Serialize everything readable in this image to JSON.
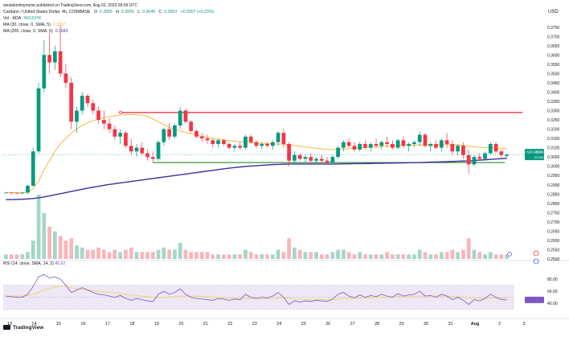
{
  "header": {
    "published": "westabiolmyname published on TradingView.com, Aug 02, 2023 09:59 UTC",
    "currency": "USD"
  },
  "legend": {
    "symbol": "Cardano / United States Dollar, 4h, COINBASE",
    "open_label": "O",
    "open": "0.3056",
    "high_label": "H",
    "high": "0.3066",
    "low_label": "L",
    "low": "0.3046",
    "close_label": "C",
    "close": "0.3063",
    "change": "+0.0007 (+0.23%)",
    "vol_label": "Vol · ADA",
    "vol": "403.537K",
    "ma30_label": "MA (30, close, 0, SMA, 5)",
    "ma30": "0.3097",
    "ma200_label": "MA (200, close, 0, SMA, 5)",
    "ma200": "0.3043"
  },
  "rsi": {
    "label": "RSI (14, close, SMA, 14, 2)",
    "value": "45.62",
    "ticks": [
      "80.00",
      "60.00",
      "40.00"
    ]
  },
  "price_badges": {
    "ada_usd": "ADAUSD",
    "price": "0.3063",
    "countdown": "02:00:59"
  },
  "branding": {
    "logo_text": "TradingView"
  },
  "colors": {
    "up": "#089981",
    "down": "#f23645",
    "ma30": "#f5b93a",
    "ma200": "#3d2fa0",
    "resistance": "#f23645",
    "support": "#3a9a3e",
    "rsi_line": "#7e57c2",
    "rsi_ma": "#f5d56a",
    "rsi_band": "#ede7f6"
  },
  "chart_data": {
    "type": "candlestick",
    "x_ticks": [
      "13",
      "14",
      "15",
      "16",
      "17",
      "18",
      "19",
      "20",
      "21",
      "22",
      "23",
      "24",
      "25",
      "26",
      "27",
      "28",
      "29",
      "30",
      "31",
      "Aug",
      "2",
      "3"
    ],
    "y_ticks": [
      "0.3750",
      "0.3700",
      "0.3650",
      "0.3600",
      "0.3550",
      "0.3500",
      "0.3450",
      "0.3400",
      "0.3350",
      "0.3300",
      "0.3250",
      "0.3200",
      "0.3150",
      "0.3100",
      "0.3050",
      "0.3000",
      "0.2950",
      "0.2900",
      "0.2850",
      "0.2800",
      "0.2750",
      "0.2700",
      "0.2650",
      "0.2600",
      "0.2550",
      "0.2500"
    ],
    "ylim": [
      0.25,
      0.3775
    ],
    "candles": [
      [
        0.2857,
        0.2861,
        0.2855,
        0.2858
      ],
      [
        0.2858,
        0.286,
        0.2854,
        0.2856
      ],
      [
        0.2856,
        0.2858,
        0.2852,
        0.2854
      ],
      [
        0.2854,
        0.2859,
        0.285,
        0.2858
      ],
      [
        0.2858,
        0.29,
        0.285,
        0.2895
      ],
      [
        0.2895,
        0.31,
        0.289,
        0.308
      ],
      [
        0.308,
        0.345,
        0.307,
        0.342
      ],
      [
        0.342,
        0.368,
        0.34,
        0.36
      ],
      [
        0.36,
        0.372,
        0.35,
        0.356
      ],
      [
        0.356,
        0.365,
        0.352,
        0.362
      ],
      [
        0.362,
        0.376,
        0.348,
        0.35
      ],
      [
        0.35,
        0.355,
        0.342,
        0.345
      ],
      [
        0.345,
        0.348,
        0.32,
        0.324
      ],
      [
        0.324,
        0.332,
        0.318,
        0.33
      ],
      [
        0.33,
        0.34,
        0.328,
        0.338
      ],
      [
        0.338,
        0.339,
        0.332,
        0.334
      ],
      [
        0.334,
        0.336,
        0.328,
        0.33
      ],
      [
        0.33,
        0.332,
        0.323,
        0.325
      ],
      [
        0.325,
        0.33,
        0.32,
        0.323
      ],
      [
        0.323,
        0.326,
        0.318,
        0.32
      ],
      [
        0.32,
        0.322,
        0.314,
        0.316
      ],
      [
        0.316,
        0.32,
        0.312,
        0.318
      ],
      [
        0.318,
        0.319,
        0.31,
        0.311
      ],
      [
        0.311,
        0.315,
        0.306,
        0.308
      ],
      [
        0.308,
        0.312,
        0.305,
        0.31
      ],
      [
        0.31,
        0.313,
        0.306,
        0.307
      ],
      [
        0.307,
        0.309,
        0.303,
        0.305
      ],
      [
        0.305,
        0.308,
        0.302,
        0.304
      ],
      [
        0.304,
        0.314,
        0.303,
        0.313
      ],
      [
        0.313,
        0.321,
        0.311,
        0.32
      ],
      [
        0.32,
        0.323,
        0.314,
        0.316
      ],
      [
        0.316,
        0.323,
        0.315,
        0.322
      ],
      [
        0.322,
        0.332,
        0.32,
        0.33
      ],
      [
        0.33,
        0.331,
        0.323,
        0.324
      ],
      [
        0.324,
        0.325,
        0.318,
        0.319
      ],
      [
        0.319,
        0.32,
        0.315,
        0.316
      ],
      [
        0.316,
        0.318,
        0.313,
        0.315
      ],
      [
        0.315,
        0.317,
        0.312,
        0.314
      ],
      [
        0.314,
        0.315,
        0.31,
        0.312
      ],
      [
        0.312,
        0.315,
        0.31,
        0.314
      ],
      [
        0.314,
        0.315,
        0.311,
        0.312
      ],
      [
        0.312,
        0.313,
        0.309,
        0.31
      ],
      [
        0.31,
        0.312,
        0.308,
        0.311
      ],
      [
        0.311,
        0.313,
        0.309,
        0.31
      ],
      [
        0.31,
        0.317,
        0.309,
        0.316
      ],
      [
        0.316,
        0.317,
        0.312,
        0.313
      ],
      [
        0.313,
        0.314,
        0.31,
        0.311
      ],
      [
        0.311,
        0.313,
        0.309,
        0.312
      ],
      [
        0.312,
        0.313,
        0.31,
        0.311
      ],
      [
        0.311,
        0.314,
        0.309,
        0.313
      ],
      [
        0.313,
        0.319,
        0.311,
        0.318
      ],
      [
        0.318,
        0.32,
        0.31,
        0.312
      ],
      [
        0.312,
        0.313,
        0.3,
        0.303
      ],
      [
        0.303,
        0.308,
        0.301,
        0.306
      ],
      [
        0.306,
        0.307,
        0.303,
        0.304
      ],
      [
        0.304,
        0.306,
        0.302,
        0.305
      ],
      [
        0.305,
        0.307,
        0.302,
        0.303
      ],
      [
        0.303,
        0.305,
        0.301,
        0.304
      ],
      [
        0.304,
        0.306,
        0.302,
        0.303
      ],
      [
        0.303,
        0.305,
        0.301,
        0.302
      ],
      [
        0.302,
        0.306,
        0.301,
        0.305
      ],
      [
        0.305,
        0.311,
        0.304,
        0.31
      ],
      [
        0.31,
        0.314,
        0.308,
        0.313
      ],
      [
        0.313,
        0.315,
        0.31,
        0.311
      ],
      [
        0.311,
        0.313,
        0.308,
        0.309
      ],
      [
        0.309,
        0.313,
        0.308,
        0.312
      ],
      [
        0.312,
        0.314,
        0.309,
        0.31
      ],
      [
        0.31,
        0.313,
        0.308,
        0.312
      ],
      [
        0.312,
        0.315,
        0.31,
        0.311
      ],
      [
        0.311,
        0.314,
        0.309,
        0.313
      ],
      [
        0.313,
        0.316,
        0.31,
        0.312
      ],
      [
        0.312,
        0.314,
        0.309,
        0.31
      ],
      [
        0.31,
        0.315,
        0.309,
        0.314
      ],
      [
        0.314,
        0.316,
        0.31,
        0.311
      ],
      [
        0.311,
        0.313,
        0.308,
        0.312
      ],
      [
        0.312,
        0.314,
        0.31,
        0.313
      ],
      [
        0.313,
        0.319,
        0.311,
        0.317
      ],
      [
        0.317,
        0.318,
        0.31,
        0.311
      ],
      [
        0.311,
        0.313,
        0.308,
        0.312
      ],
      [
        0.312,
        0.314,
        0.309,
        0.31
      ],
      [
        0.31,
        0.315,
        0.308,
        0.314
      ],
      [
        0.314,
        0.318,
        0.31,
        0.312
      ],
      [
        0.312,
        0.314,
        0.306,
        0.308
      ],
      [
        0.308,
        0.312,
        0.306,
        0.311
      ],
      [
        0.311,
        0.313,
        0.304,
        0.306
      ],
      [
        0.306,
        0.309,
        0.296,
        0.301
      ],
      [
        0.301,
        0.306,
        0.3,
        0.305
      ],
      [
        0.305,
        0.307,
        0.303,
        0.304
      ],
      [
        0.304,
        0.308,
        0.303,
        0.307
      ],
      [
        0.307,
        0.313,
        0.306,
        0.312
      ],
      [
        0.312,
        0.313,
        0.307,
        0.308
      ],
      [
        0.308,
        0.309,
        0.305,
        0.306
      ],
      [
        0.3056,
        0.3066,
        0.3046,
        0.3063
      ]
    ],
    "volume": [
      2,
      2,
      2,
      2,
      3,
      8,
      28,
      20,
      14,
      12,
      10,
      8,
      9,
      6,
      5,
      4,
      4,
      5,
      4,
      3,
      4,
      3,
      4,
      5,
      3,
      3,
      3,
      3,
      4,
      5,
      4,
      4,
      7,
      4,
      3,
      3,
      3,
      3,
      2,
      2,
      2,
      2,
      2,
      2,
      4,
      3,
      2,
      2,
      2,
      2,
      4,
      3,
      9,
      5,
      4,
      3,
      3,
      3,
      2,
      2,
      3,
      4,
      4,
      3,
      2,
      3,
      2,
      2,
      2,
      2,
      3,
      2,
      2,
      2,
      2,
      2,
      4,
      3,
      2,
      2,
      3,
      3,
      4,
      3,
      4,
      9,
      4,
      3,
      2,
      3,
      2,
      2,
      2
    ],
    "ma30": [
      0.2857,
      0.2857,
      0.2857,
      0.2857,
      0.286,
      0.288,
      0.292,
      0.298,
      0.303,
      0.308,
      0.312,
      0.315,
      0.318,
      0.32,
      0.322,
      0.3235,
      0.3245,
      0.3255,
      0.3262,
      0.3268,
      0.3272,
      0.3276,
      0.3278,
      0.328,
      0.3278,
      0.3275,
      0.3268,
      0.3255,
      0.324,
      0.3225,
      0.321,
      0.32,
      0.319,
      0.3182,
      0.3175,
      0.3168,
      0.3162,
      0.3156,
      0.315,
      0.3146,
      0.3142,
      0.3138,
      0.3135,
      0.3132,
      0.313,
      0.3128,
      0.3126,
      0.3124,
      0.3122,
      0.312,
      0.312,
      0.3119,
      0.3116,
      0.3112,
      0.3108,
      0.3104,
      0.31,
      0.3097,
      0.3094,
      0.3091,
      0.309,
      0.309,
      0.3092,
      0.3095,
      0.3097,
      0.3099,
      0.3101,
      0.3103,
      0.3104,
      0.3106,
      0.3108,
      0.3109,
      0.311,
      0.3112,
      0.3113,
      0.3114,
      0.3115,
      0.3116,
      0.3116,
      0.3116,
      0.3117,
      0.3117,
      0.3116,
      0.3114,
      0.3112,
      0.3108,
      0.3105,
      0.3102,
      0.31,
      0.3099,
      0.3098,
      0.3097,
      0.3097
    ],
    "ma200": [
      0.282,
      0.282,
      0.2821,
      0.2822,
      0.2824,
      0.2826,
      0.283,
      0.2835,
      0.284,
      0.2846,
      0.2852,
      0.2858,
      0.2864,
      0.287,
      0.2876,
      0.2882,
      0.2887,
      0.2892,
      0.2897,
      0.2902,
      0.2906,
      0.291,
      0.2914,
      0.2918,
      0.2922,
      0.2926,
      0.293,
      0.2934,
      0.2938,
      0.2942,
      0.2946,
      0.295,
      0.2954,
      0.2958,
      0.2962,
      0.2966,
      0.297,
      0.2974,
      0.2978,
      0.2982,
      0.2986,
      0.299,
      0.2993,
      0.2996,
      0.2999,
      0.3001,
      0.3003,
      0.3005,
      0.3007,
      0.3009,
      0.301,
      0.3011,
      0.3012,
      0.3012,
      0.3012,
      0.3012,
      0.3012,
      0.3012,
      0.3012,
      0.3012,
      0.3012,
      0.3012,
      0.3013,
      0.3013,
      0.3014,
      0.3014,
      0.3015,
      0.3015,
      0.3016,
      0.3016,
      0.3017,
      0.3017,
      0.3018,
      0.3018,
      0.3019,
      0.3019,
      0.302,
      0.3021,
      0.3022,
      0.3023,
      0.3024,
      0.3025,
      0.3026,
      0.3027,
      0.3028,
      0.3029,
      0.3031,
      0.3033,
      0.3035,
      0.3037,
      0.3039,
      0.3041,
      0.3043
    ],
    "rsi": [
      52,
      51,
      50,
      50,
      55,
      68,
      84,
      88,
      82,
      84,
      80,
      70,
      58,
      62,
      66,
      62,
      58,
      55,
      54,
      52,
      50,
      53,
      48,
      45,
      48,
      46,
      44,
      43,
      55,
      60,
      55,
      58,
      64,
      55,
      50,
      48,
      47,
      46,
      45,
      48,
      47,
      45,
      47,
      46,
      55,
      50,
      48,
      50,
      49,
      52,
      58,
      50,
      38,
      44,
      42,
      44,
      43,
      45,
      44,
      43,
      47,
      55,
      58,
      52,
      49,
      54,
      50,
      53,
      51,
      55,
      52,
      50,
      56,
      52,
      54,
      55,
      60,
      52,
      53,
      50,
      55,
      52,
      46,
      50,
      45,
      38,
      46,
      44,
      48,
      55,
      50,
      46,
      45.62
    ],
    "rsi_ma": [
      52,
      52,
      52,
      52,
      53,
      55,
      58,
      62,
      65,
      67,
      68,
      68,
      66,
      64,
      63,
      62,
      61,
      60,
      59,
      58,
      57,
      56,
      55,
      54,
      53,
      52,
      51,
      50,
      50,
      50,
      50,
      51,
      52,
      52,
      52,
      52,
      51,
      51,
      50,
      50,
      49,
      49,
      48,
      48,
      48,
      48,
      48,
      48,
      48,
      48,
      49,
      49,
      48,
      47,
      47,
      46,
      46,
      46,
      46,
      46,
      46,
      47,
      48,
      48,
      48,
      49,
      49,
      49,
      50,
      50,
      50,
      51,
      51,
      51,
      52,
      52,
      52,
      52,
      52,
      52,
      52,
      52,
      51,
      51,
      50,
      49,
      48,
      48,
      48,
      49,
      49,
      49,
      49
    ],
    "rsi_lim": [
      20,
      95
    ],
    "resistance": 0.329,
    "support": 0.302,
    "last_price": 0.3063
  }
}
